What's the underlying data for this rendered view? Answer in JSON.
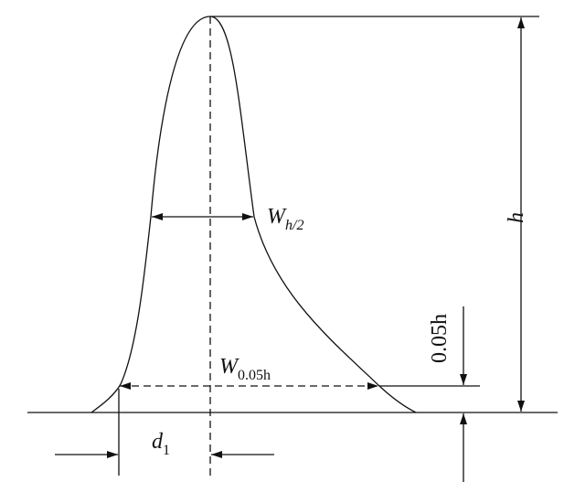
{
  "labels": {
    "half_width": {
      "main": "W",
      "sub": "h/2"
    },
    "height": "h",
    "five_percent_height": "0.05h",
    "base_width": {
      "main": "W",
      "sub": "0.05h"
    },
    "front_distance": {
      "main": "d",
      "sub": "1"
    }
  }
}
